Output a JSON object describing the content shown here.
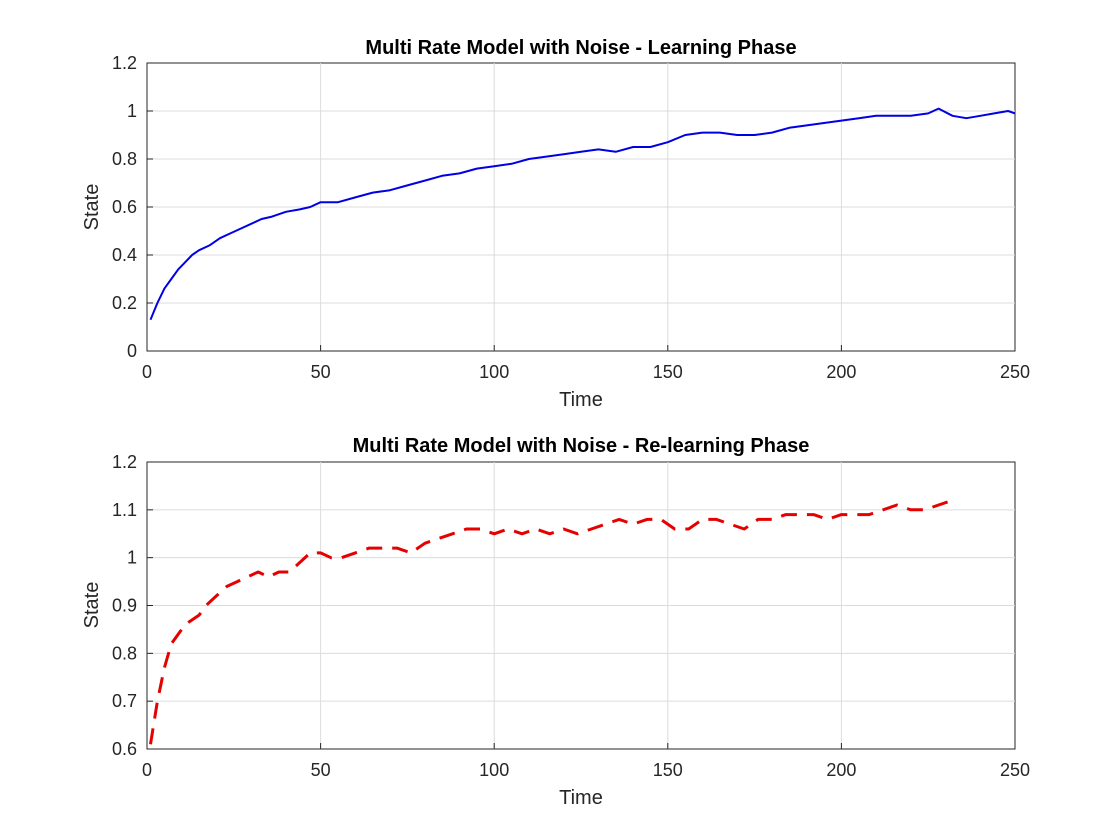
{
  "chart_data": [
    {
      "type": "line",
      "title": "Multi Rate Model with Noise - Learning Phase",
      "xlabel": "Time",
      "ylabel": "State",
      "xlim": [
        0,
        250
      ],
      "ylim": [
        0,
        1.2
      ],
      "xticks": [
        0,
        50,
        100,
        150,
        200,
        250
      ],
      "yticks": [
        0,
        0.2,
        0.4,
        0.6,
        0.8,
        1,
        1.2
      ],
      "grid": true,
      "line_style": "solid",
      "color": "#0000e6",
      "series": [
        {
          "x": [
            1,
            3,
            5,
            7,
            9,
            11,
            13,
            15,
            18,
            21,
            24,
            27,
            30,
            33,
            36,
            40,
            44,
            47,
            50,
            55,
            60,
            65,
            70,
            75,
            80,
            85,
            90,
            95,
            100,
            105,
            110,
            115,
            120,
            125,
            130,
            135,
            140,
            145,
            150,
            155,
            160,
            165,
            170,
            175,
            180,
            185,
            190,
            195,
            200,
            205,
            210,
            215,
            220,
            225,
            228,
            232,
            236,
            240,
            244,
            248,
            250
          ],
          "y": [
            0.13,
            0.2,
            0.26,
            0.3,
            0.34,
            0.37,
            0.4,
            0.42,
            0.44,
            0.47,
            0.49,
            0.51,
            0.53,
            0.55,
            0.56,
            0.58,
            0.59,
            0.6,
            0.62,
            0.62,
            0.64,
            0.66,
            0.67,
            0.69,
            0.71,
            0.73,
            0.74,
            0.76,
            0.77,
            0.78,
            0.8,
            0.81,
            0.82,
            0.83,
            0.84,
            0.83,
            0.85,
            0.85,
            0.87,
            0.9,
            0.91,
            0.91,
            0.9,
            0.9,
            0.91,
            0.93,
            0.94,
            0.95,
            0.96,
            0.97,
            0.98,
            0.98,
            0.98,
            0.99,
            1.01,
            0.98,
            0.97,
            0.98,
            0.99,
            1.0,
            0.99
          ]
        }
      ]
    },
    {
      "type": "line",
      "title": "Multi Rate Model with Noise - Re-learning Phase",
      "xlabel": "Time",
      "ylabel": "State",
      "xlim": [
        0,
        250
      ],
      "ylim": [
        0.6,
        1.2
      ],
      "xticks": [
        0,
        50,
        100,
        150,
        200,
        250
      ],
      "yticks": [
        0.6,
        0.7,
        0.8,
        0.9,
        1,
        1.1,
        1.2
      ],
      "grid": true,
      "line_style": "dashed",
      "color": "#e60000",
      "series": [
        {
          "x": [
            1,
            3,
            5,
            7,
            9,
            11,
            13,
            15,
            17,
            20,
            23,
            26,
            29,
            32,
            35,
            38,
            41,
            44,
            47,
            50,
            53,
            56,
            60,
            64,
            68,
            72,
            76,
            80,
            84,
            88,
            92,
            96,
            100,
            104,
            108,
            112,
            116,
            120,
            124,
            128,
            132,
            136,
            140,
            144,
            148,
            152,
            156,
            160,
            164,
            168,
            172,
            176,
            180,
            184,
            188,
            192,
            196,
            200,
            204,
            208,
            212,
            216,
            220,
            224,
            228,
            232
          ],
          "y": [
            0.61,
            0.7,
            0.77,
            0.82,
            0.84,
            0.86,
            0.87,
            0.88,
            0.9,
            0.92,
            0.94,
            0.95,
            0.96,
            0.97,
            0.96,
            0.97,
            0.97,
            0.99,
            1.01,
            1.01,
            1.0,
            1.0,
            1.01,
            1.02,
            1.02,
            1.02,
            1.01,
            1.03,
            1.04,
            1.05,
            1.06,
            1.06,
            1.05,
            1.06,
            1.05,
            1.06,
            1.05,
            1.06,
            1.05,
            1.06,
            1.07,
            1.08,
            1.07,
            1.08,
            1.08,
            1.06,
            1.06,
            1.08,
            1.08,
            1.07,
            1.06,
            1.08,
            1.08,
            1.09,
            1.09,
            1.09,
            1.08,
            1.09,
            1.09,
            1.09,
            1.1,
            1.11,
            1.1,
            1.1,
            1.11,
            1.12
          ]
        }
      ]
    }
  ]
}
